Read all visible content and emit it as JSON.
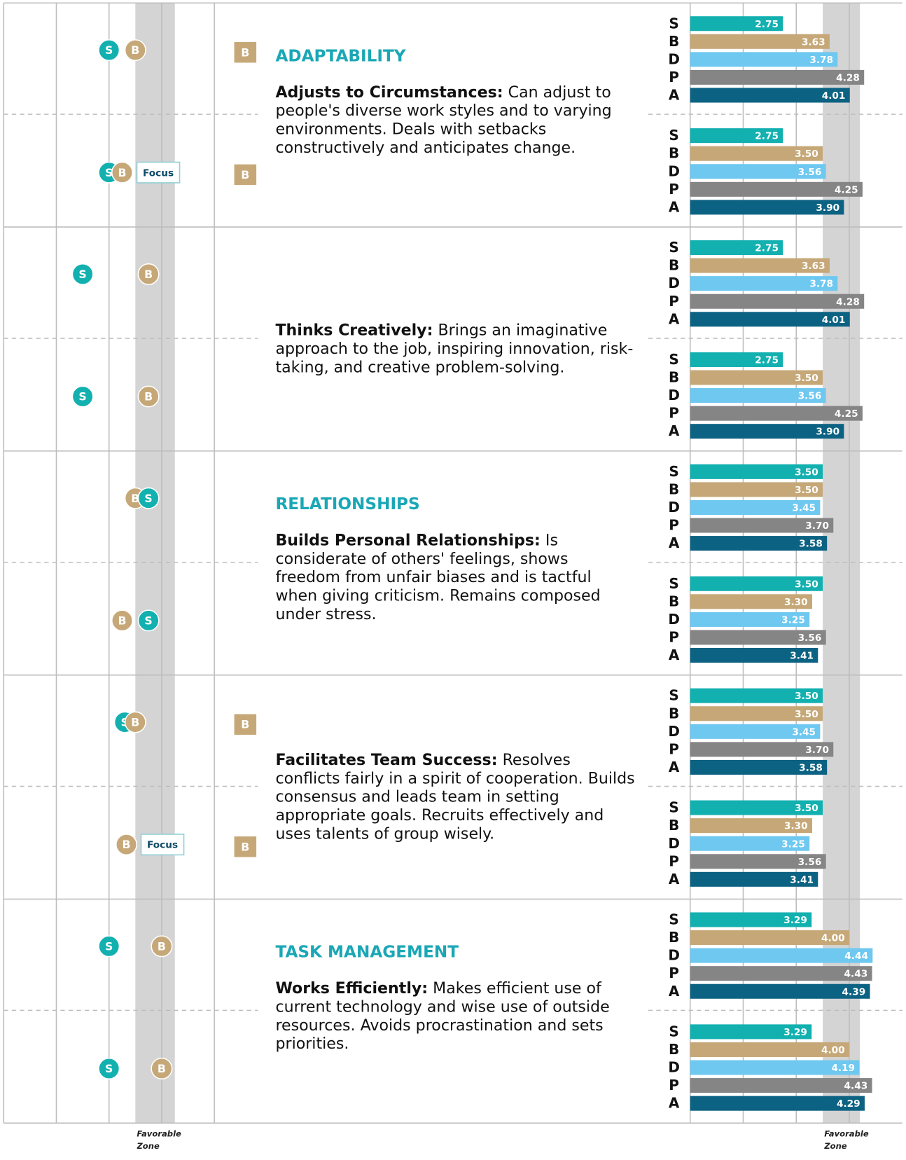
{
  "left_scale": {
    "xlim": [
      0,
      4
    ],
    "xticks": [
      1,
      2,
      3
    ],
    "favorable_zone": [
      2.5,
      3.25
    ]
  },
  "right_scale": {
    "xlim": [
      1,
      5
    ],
    "xticks": [
      2,
      3,
      4
    ],
    "favorable_zone": [
      3.5,
      4.2
    ]
  },
  "favorable_label": "Favorable Zone",
  "bar_labels": [
    "S",
    "B",
    "D",
    "P",
    "A"
  ],
  "colors": [
    "#13b0b0",
    "#c6a878",
    "#6ec8f0",
    "#858585",
    "#0c6282"
  ],
  "dot_colors": {
    "S": "#13b0b0",
    "B": "#c6a878"
  },
  "sections": [
    {
      "heading": "ADAPTABILITY",
      "competency": "Adjusts to Circumstances:",
      "description": "Can adjust to people's diverse work styles and to varying environments. Deals with setbacks constructively and anticipates change.",
      "rows": [
        {
          "dots": [
            {
              "name": "S",
              "value": 2.0
            },
            {
              "name": "B",
              "value": 2.5
            }
          ],
          "flag": "B",
          "values": [
            2.75,
            3.63,
            3.78,
            4.28,
            4.01
          ],
          "value_labels": [
            "2.75",
            "3.63",
            "3.78",
            "4.28",
            "4.01"
          ]
        },
        {
          "dots": [
            {
              "name": "S",
              "value": 2.0
            },
            {
              "name": "B",
              "value": 2.25
            }
          ],
          "flag": "B",
          "tag": "Focus",
          "values": [
            2.75,
            3.5,
            3.56,
            4.25,
            3.9
          ],
          "value_labels": [
            "2.75",
            "3.50",
            "3.56",
            "4.25",
            "3.90"
          ]
        }
      ]
    },
    {
      "competency": "Thinks Creatively:",
      "description": "Brings an imaginative approach to the job, inspiring innovation, risk-taking, and creative problem-solving.",
      "rows": [
        {
          "dots": [
            {
              "name": "S",
              "value": 1.5
            },
            {
              "name": "B",
              "value": 2.75
            }
          ],
          "values": [
            2.75,
            3.63,
            3.78,
            4.28,
            4.01
          ],
          "value_labels": [
            "2.75",
            "3.63",
            "3.78",
            "4.28",
            "4.01"
          ]
        },
        {
          "dots": [
            {
              "name": "S",
              "value": 1.5
            },
            {
              "name": "B",
              "value": 2.75
            }
          ],
          "values": [
            2.75,
            3.5,
            3.56,
            4.25,
            3.9
          ],
          "value_labels": [
            "2.75",
            "3.50",
            "3.56",
            "4.25",
            "3.90"
          ]
        }
      ]
    },
    {
      "heading": "RELATIONSHIPS",
      "competency": "Builds Personal Relationships:",
      "description": "Is considerate of others' feelings, shows freedom from unfair biases and is tactful when giving criticism. Remains composed under stress.",
      "rows": [
        {
          "dots": [
            {
              "name": "B",
              "value": 2.5
            },
            {
              "name": "S",
              "value": 2.75
            }
          ],
          "values": [
            3.5,
            3.5,
            3.45,
            3.7,
            3.58
          ],
          "value_labels": [
            "3.50",
            "3.50",
            "3.45",
            "3.70",
            "3.58"
          ]
        },
        {
          "dots": [
            {
              "name": "B",
              "value": 2.25
            },
            {
              "name": "S",
              "value": 2.75
            }
          ],
          "values": [
            3.5,
            3.3,
            3.25,
            3.56,
            3.41
          ],
          "value_labels": [
            "3.50",
            "3.30",
            "3.25",
            "3.56",
            "3.41"
          ]
        }
      ]
    },
    {
      "competency": "Facilitates Team Success:",
      "description": "Resolves conflicts fairly in a spirit of cooperation. Builds consensus and leads team in setting appropriate goals. Recruits effectively and uses talents of group wisely.",
      "rows": [
        {
          "dots": [
            {
              "name": "S",
              "value": 2.3
            },
            {
              "name": "B",
              "value": 2.5
            }
          ],
          "flag": "B",
          "values": [
            3.5,
            3.5,
            3.45,
            3.7,
            3.58
          ],
          "value_labels": [
            "3.50",
            "3.50",
            "3.45",
            "3.70",
            "3.58"
          ]
        },
        {
          "dots": [
            {
              "name": "S",
              "value": 2.33
            },
            {
              "name": "B",
              "value": 2.33
            }
          ],
          "flag": "B",
          "tag": "Focus",
          "values": [
            3.5,
            3.3,
            3.25,
            3.56,
            3.41
          ],
          "value_labels": [
            "3.50",
            "3.30",
            "3.25",
            "3.56",
            "3.41"
          ]
        }
      ]
    },
    {
      "heading": "TASK MANAGEMENT",
      "competency": "Works Efficiently:",
      "description": "Makes efficient use of current technology and wise use of outside resources. Avoids procrastination and sets priorities.",
      "rows": [
        {
          "dots": [
            {
              "name": "S",
              "value": 2.0
            },
            {
              "name": "B",
              "value": 3.0
            }
          ],
          "values": [
            3.29,
            4.0,
            4.44,
            4.43,
            4.39
          ],
          "value_labels": [
            "3.29",
            "4.00",
            "4.44",
            "4.43",
            "4.39"
          ]
        },
        {
          "dots": [
            {
              "name": "S",
              "value": 2.0
            },
            {
              "name": "B",
              "value": 3.0
            }
          ],
          "values": [
            3.29,
            4.0,
            4.19,
            4.43,
            4.29
          ],
          "value_labels": [
            "3.29",
            "4.00",
            "4.19",
            "4.43",
            "4.29"
          ]
        }
      ]
    }
  ]
}
